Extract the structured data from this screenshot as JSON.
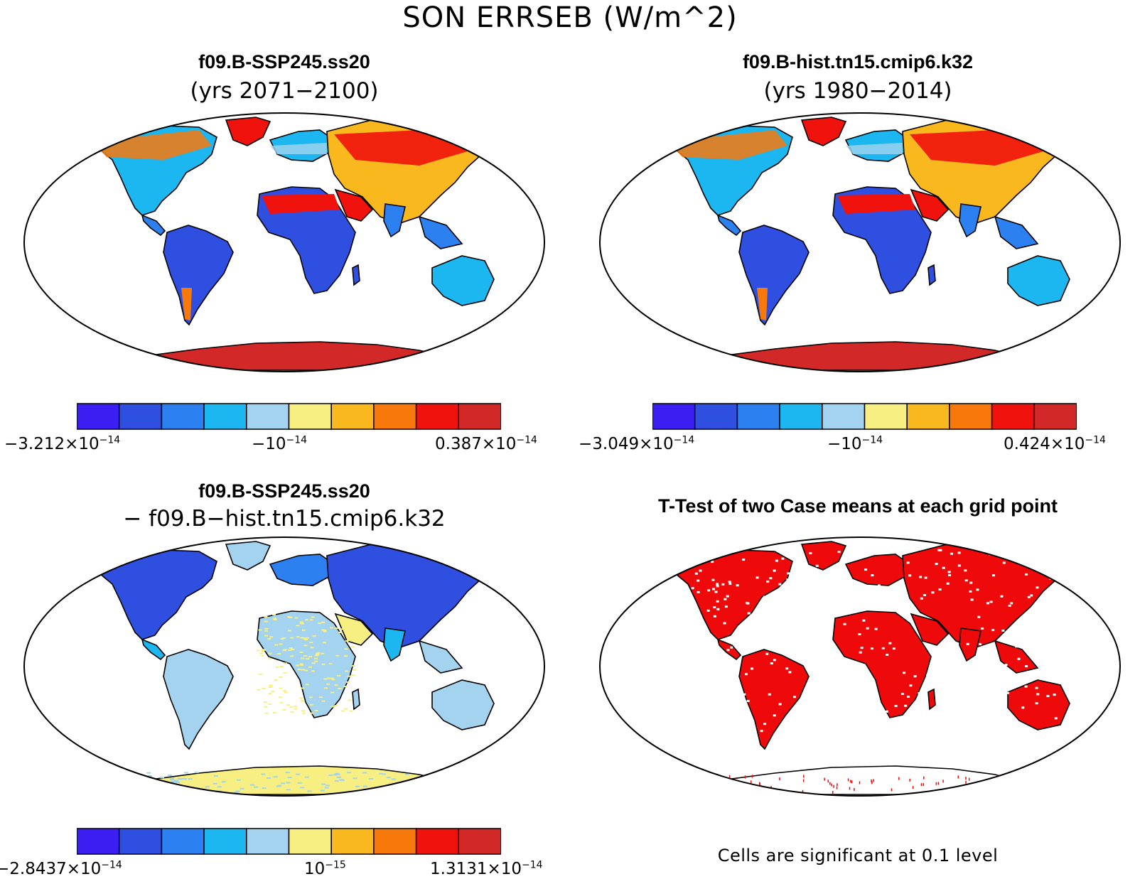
{
  "title": "SON ERRSEB (W/m^2)",
  "palette": [
    "#3a1ef2",
    "#2f4fe0",
    "#2c80f0",
    "#1cb7f0",
    "#a3d3ef",
    "#f8ef82",
    "#f8b81e",
    "#f7790c",
    "#f0120c",
    "#d22828"
  ],
  "panels": [
    {
      "id": "case1",
      "title": "f09.B-SSP245.ss20",
      "subtitle": "(yrs 2071−2100)",
      "colorbar": {
        "min_label": "−3.212×10",
        "min_exp": "−14",
        "mid_label": "−10",
        "mid_exp": "−14",
        "max_label": "0.387×10",
        "max_exp": "−14"
      }
    },
    {
      "id": "case2",
      "title": "f09.B-hist.tn15.cmip6.k32",
      "subtitle": "(yrs 1980−2014)",
      "colorbar": {
        "min_label": "−3.049×10",
        "min_exp": "−14",
        "mid_label": "−10",
        "mid_exp": "−14",
        "max_label": "0.424×10",
        "max_exp": "−14"
      }
    },
    {
      "id": "diff",
      "title": "f09.B-SSP245.ss20",
      "subtitle": "− f09.B−hist.tn15.cmip6.k32",
      "colorbar": {
        "min_label": "−2.8437×10",
        "min_exp": "−14",
        "mid_label": "10",
        "mid_exp": "−15",
        "max_label": "1.3131×10",
        "max_exp": "−14"
      }
    },
    {
      "id": "ttest",
      "title": "T-Test of two Case means at each grid point",
      "footnote": "Cells are significant at 0.1 level"
    }
  ]
}
